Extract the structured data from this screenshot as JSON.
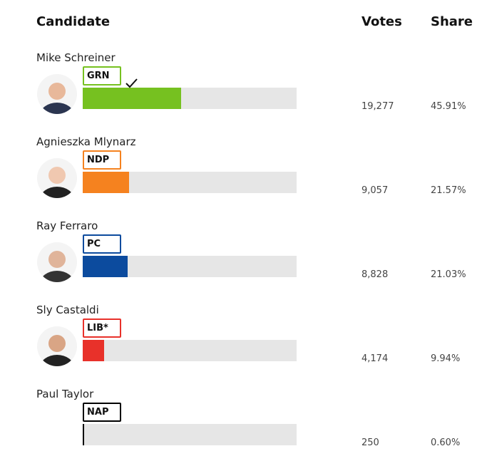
{
  "chart_data": {
    "type": "bar",
    "orientation": "horizontal",
    "column_headers": {
      "candidate": "Candidate",
      "votes": "Votes",
      "share": "Share"
    },
    "categories": [
      "Mike Schreiner",
      "Agnieszka Mlynarz",
      "Ray Ferraro",
      "Sly Castaldi",
      "Paul Taylor"
    ],
    "parties": [
      "GRN",
      "NDP",
      "PC",
      "LIB*",
      "NAP"
    ],
    "votes": [
      "19,277",
      "9,057",
      "8,828",
      "4,174",
      "250"
    ],
    "values": [
      45.91,
      21.57,
      21.03,
      9.94,
      0.6
    ],
    "value_labels": [
      "45.91%",
      "21.57%",
      "21.03%",
      "9.94%",
      "0.60%"
    ],
    "colors": [
      "#76c120",
      "#f5821f",
      "#0c4b9e",
      "#e8312a",
      "#000000"
    ],
    "xlim": [
      0,
      100
    ]
  }
}
